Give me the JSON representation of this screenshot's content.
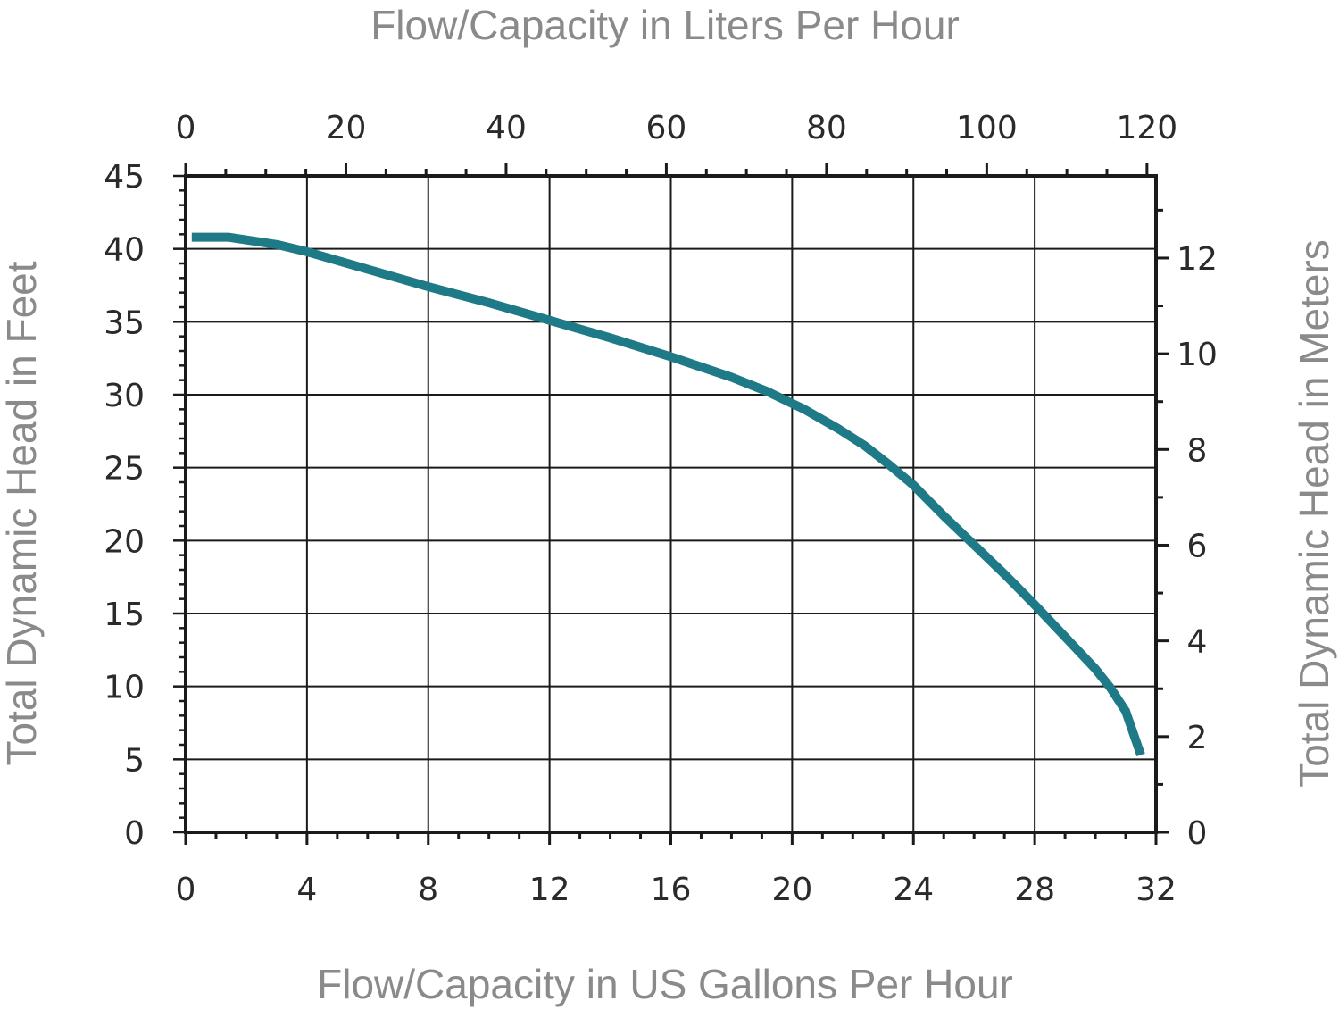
{
  "chart_data": {
    "type": "line",
    "title": "",
    "xlabel": "Flow/Capacity in US Gallons Per Hour",
    "ylabel": "Total Dynamic Head in Feet",
    "x2label": "Flow/Capacity in Liters Per Hour",
    "y2label": "Total Dynamic Head in Meters",
    "xlim": [
      0,
      32
    ],
    "ylim": [
      0,
      45
    ],
    "x2lim": [
      0,
      121.13
    ],
    "y2lim": [
      0,
      13.716
    ],
    "x_ticks": [
      0,
      4,
      8,
      12,
      16,
      20,
      24,
      28,
      32
    ],
    "y_ticks": [
      0,
      5,
      10,
      15,
      20,
      25,
      30,
      35,
      40,
      45
    ],
    "x2_ticks": [
      0,
      20,
      40,
      60,
      80,
      100,
      120
    ],
    "y2_ticks": [
      0,
      2,
      4,
      6,
      8,
      10,
      12
    ],
    "grid": true,
    "series": [
      {
        "name": "",
        "color": "#1f7a87",
        "x": [
          0.2,
          1.4,
          3.0,
          4.0,
          6.0,
          8.0,
          10.0,
          12.0,
          14.0,
          16.0,
          18.0,
          19.2,
          20.4,
          21.5,
          22.4,
          23.2,
          24.0,
          25.0,
          26.0,
          27.0,
          28.0,
          29.0,
          30.0,
          30.5,
          31.0,
          31.5
        ],
        "y": [
          40.8,
          40.8,
          40.3,
          39.8,
          38.6,
          37.4,
          36.3,
          35.1,
          33.9,
          32.6,
          31.2,
          30.2,
          29.0,
          27.7,
          26.5,
          25.2,
          23.8,
          21.7,
          19.7,
          17.7,
          15.6,
          13.4,
          11.2,
          9.9,
          8.3,
          5.3
        ]
      }
    ]
  }
}
